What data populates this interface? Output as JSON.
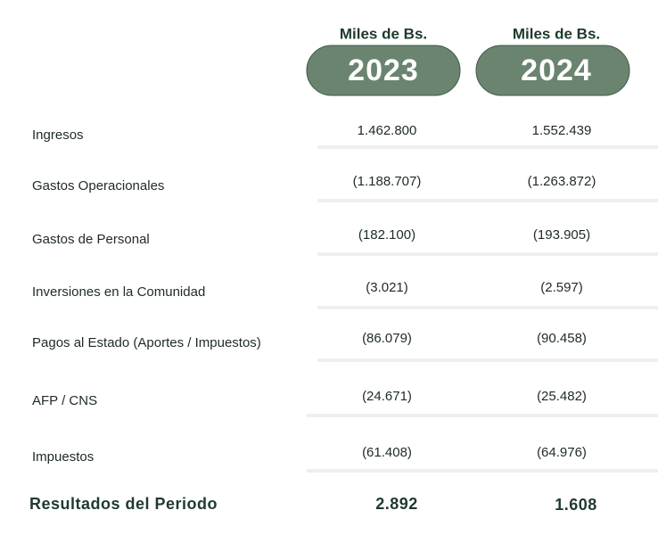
{
  "header": {
    "columns": [
      {
        "unit": "Miles de Bs.",
        "year": "2023"
      },
      {
        "unit": "Miles de Bs.",
        "year": "2024"
      }
    ]
  },
  "table": {
    "rows": [
      [
        "Ingresos",
        "1.462.800",
        "1.552.439"
      ],
      [
        "Gastos Operacionales",
        "(1.188.707)",
        "(1.263.872)"
      ],
      [
        "Gastos de Personal",
        "(182.100)",
        "(193.905)"
      ],
      [
        "Inversiones en la Comunidad",
        "(3.021)",
        "(2.597)"
      ],
      [
        "Pagos al Estado (Aportes / Impuestos)",
        "(86.079)",
        "(90.458)"
      ],
      [
        "AFP / CNS",
        "(24.671)",
        "(25.482)"
      ],
      [
        "Impuestos",
        "(61.408)",
        "(64.976)"
      ]
    ],
    "total": [
      "Resultados del Periodo",
      "2.892",
      "1.608"
    ]
  }
}
